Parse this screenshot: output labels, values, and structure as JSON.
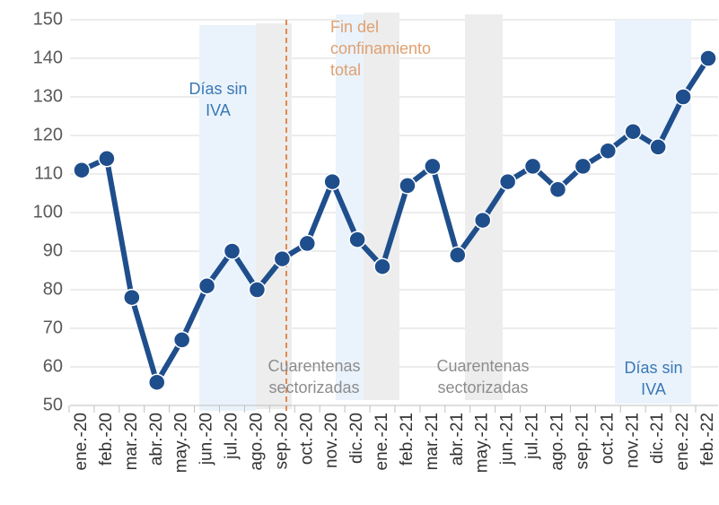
{
  "chart_data": {
    "type": "line",
    "categories": [
      "ene.-20",
      "feb.-20",
      "mar.-20",
      "abr.-20",
      "may.-20",
      "jun.-20",
      "jul.-20",
      "ago.-20",
      "sep.-20",
      "oct.-20",
      "nov.-20",
      "dic.-20",
      "ene.-21",
      "feb.-21",
      "mar.-21",
      "abr.-21",
      "may.-21",
      "jun.-21",
      "jul.-21",
      "ago.-21",
      "sep.-21",
      "oct.-21",
      "nov.-21",
      "dic.-21",
      "ene.-22",
      "feb.-22"
    ],
    "series": [
      {
        "color": "#1f4e8c",
        "values": [
          111,
          114,
          78,
          56,
          67,
          81,
          90,
          80,
          88,
          92,
          108,
          93,
          86,
          107,
          112,
          89,
          98,
          108,
          112,
          106,
          112,
          116,
          121,
          117,
          130,
          140
        ]
      }
    ],
    "ylim": [
      50,
      150
    ],
    "yticks": [
      50,
      60,
      70,
      80,
      90,
      100,
      110,
      120,
      130,
      140,
      150
    ],
    "grid": true,
    "annotations": [
      {
        "lines": [
          "Días sin",
          "IVA"
        ],
        "color": "#3a78b5"
      },
      {
        "lines": [
          "Fin del",
          "confinamiento",
          "total"
        ],
        "color": "#e0a070"
      },
      {
        "lines": [
          "Cuarentenas",
          "sectorizadas"
        ],
        "color": "#8c8c8c"
      },
      {
        "lines": [
          "Cuarentenas",
          "sectorizadas"
        ],
        "color": "#8c8c8c"
      },
      {
        "lines": [
          "Días sin",
          "IVA"
        ],
        "color": "#3a78b5"
      }
    ]
  }
}
